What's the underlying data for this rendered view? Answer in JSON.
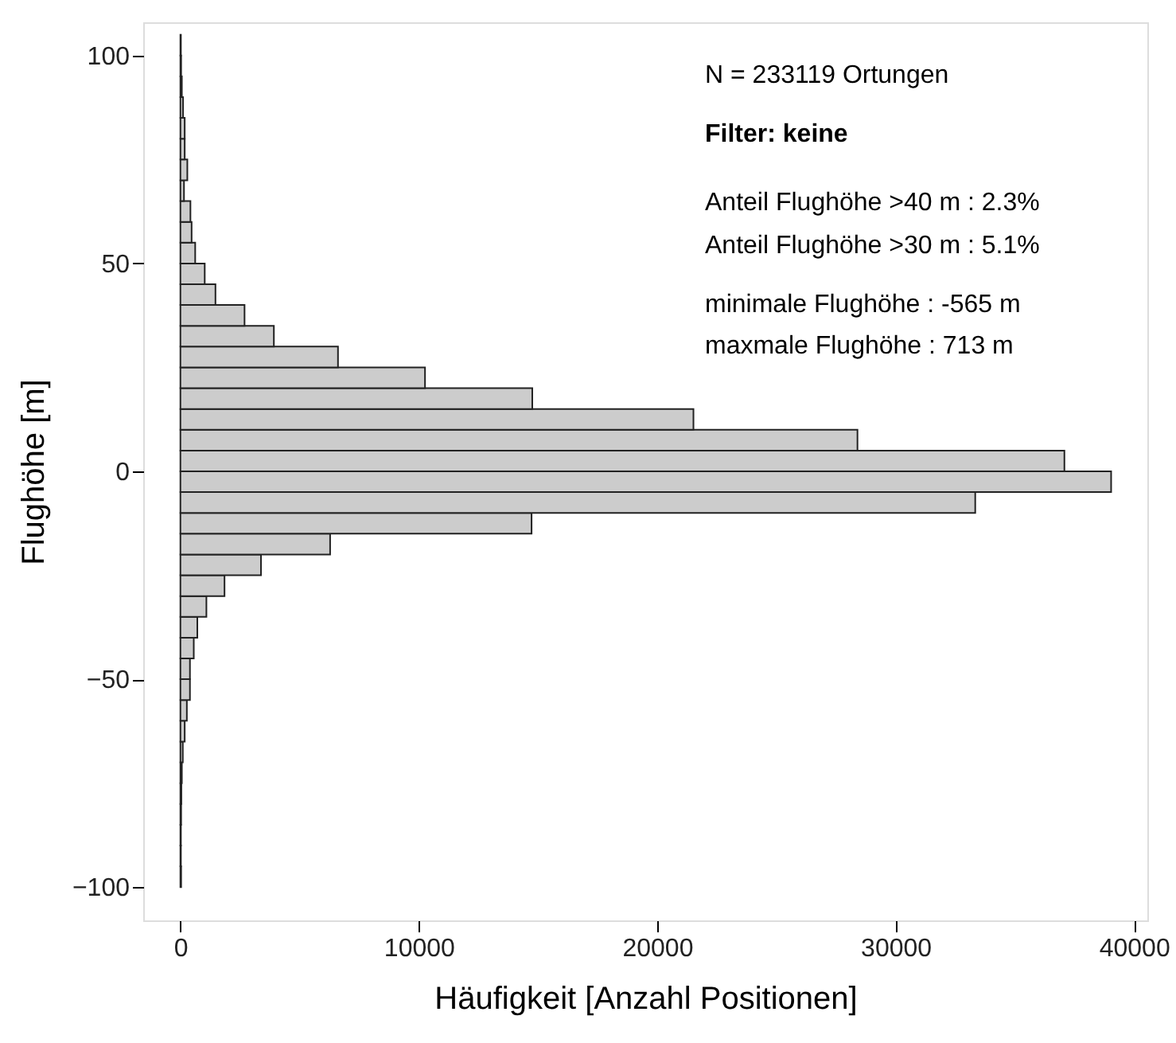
{
  "chart_data": {
    "type": "histogram",
    "orientation": "horizontal",
    "xlabel": "Häufigkeit [Anzahl Positionen]",
    "ylabel": "Flughöhe [m]",
    "bins": [
      -100,
      -95,
      -90,
      -85,
      -80,
      -75,
      -70,
      -65,
      -60,
      -55,
      -50,
      -45,
      -40,
      -35,
      -30,
      -25,
      -20,
      -15,
      -10,
      -5,
      0,
      5,
      10,
      15,
      20,
      25,
      30,
      35,
      40,
      45,
      50,
      55,
      60,
      65,
      70,
      75,
      80,
      85,
      90,
      95,
      100,
      105
    ],
    "values": [
      30,
      20,
      20,
      30,
      40,
      60,
      100,
      180,
      270,
      400,
      400,
      560,
      710,
      1090,
      1850,
      3380,
      6280,
      14730,
      33340,
      39040,
      37080,
      28400,
      21520,
      14760,
      10260,
      6610,
      3920,
      2690,
      1470,
      1020,
      620,
      470,
      420,
      150,
      290,
      180,
      180,
      110,
      60,
      30,
      20
    ],
    "color": "#cccccc",
    "xlim": [
      -1560,
      40560
    ],
    "xticks": [
      0,
      10000,
      20000,
      30000,
      40000
    ],
    "ylim": [
      -108,
      108
    ],
    "yticks": [
      -100,
      -50,
      0,
      50,
      100
    ],
    "grid": false,
    "annotations": [
      "N =  233119  Ortungen",
      "Filter: keine",
      "Anteil Flughöhe >40 m : 2.3%",
      "Anteil Flughöhe >30 m : 5.1%",
      "minimale Flughöhe : -565 m",
      "maxmale Flughöhe : 713 m"
    ]
  }
}
